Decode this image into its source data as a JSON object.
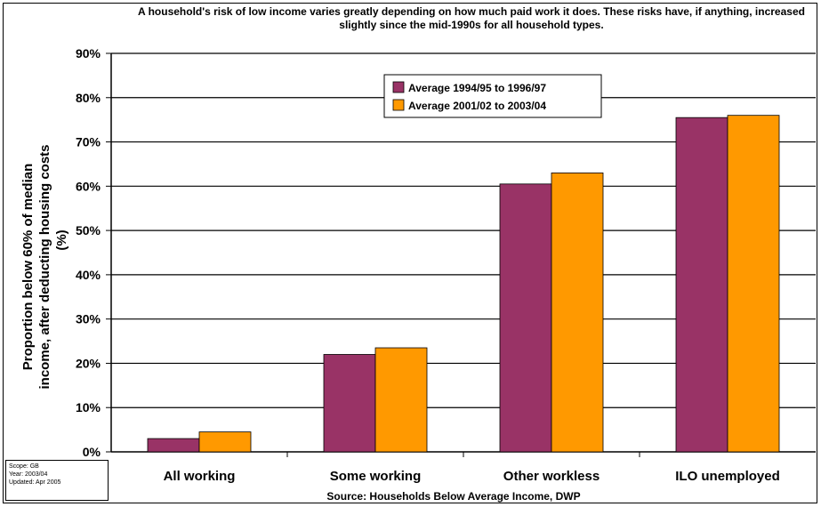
{
  "title": "A household's risk of low income varies greatly depending on how much paid work it does.  These risks have, if anything, increased slightly since the mid-1990s for all household types.",
  "source": "Source: Households Below Average Income, DWP",
  "meta": {
    "scope": "Scope:  GB",
    "year": "Year:    2003/04",
    "updated": "Updated: Apr 2005"
  },
  "colors": {
    "series1": "#993366",
    "series2": "#ff9900"
  },
  "chart_data": {
    "type": "bar",
    "title": "A household's risk of low income varies greatly depending on how much paid work it does.  These risks have, if anything, increased slightly since the mid-1990s for all household types.",
    "ylabel": "Proportion below 60% of median income, after deducting housing costs (%)",
    "xlabel": "",
    "categories": [
      "All working",
      "Some working",
      "Other workless",
      "ILO unemployed"
    ],
    "series": [
      {
        "name": "Average 1994/95 to 1996/97",
        "values": [
          3,
          22,
          60.5,
          75.5
        ]
      },
      {
        "name": "Average 2001/02 to 2003/04",
        "values": [
          4.5,
          23.5,
          63,
          76
        ]
      }
    ],
    "ylim": [
      0,
      90
    ],
    "yticks": [
      "0%",
      "10%",
      "20%",
      "30%",
      "40%",
      "50%",
      "60%",
      "70%",
      "80%",
      "90%"
    ],
    "grid": true,
    "legend": "top-center"
  }
}
